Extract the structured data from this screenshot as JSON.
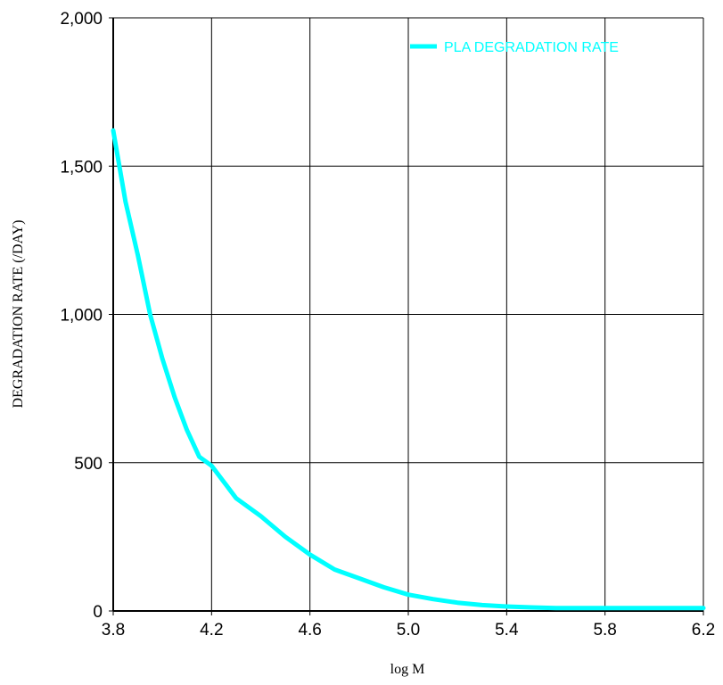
{
  "chart_data": {
    "type": "line",
    "title": "",
    "xlabel": "log M",
    "ylabel": "DEGRADATION RATE (/DAY)",
    "xlim": [
      3.8,
      6.2
    ],
    "ylim": [
      0,
      2000
    ],
    "x_ticks": [
      3.8,
      4.2,
      4.6,
      5.0,
      5.4,
      5.8,
      6.2
    ],
    "x_tick_labels": [
      "3.8",
      "4.2",
      "4.6",
      "5.0",
      "5.4",
      "5.8",
      "6.2"
    ],
    "y_ticks": [
      0,
      500,
      1000,
      1500,
      2000
    ],
    "y_tick_labels": [
      "0",
      "500",
      "1,000",
      "1,500",
      "2,000"
    ],
    "grid": true,
    "legend_position": "top-right",
    "series_color": "#00FFFF",
    "series": [
      {
        "name": "PLA DEGRADATION RATE",
        "x": [
          3.8,
          3.85,
          3.9,
          3.95,
          4.0,
          4.05,
          4.1,
          4.15,
          4.2,
          4.3,
          4.4,
          4.5,
          4.6,
          4.7,
          4.8,
          4.9,
          5.0,
          5.1,
          5.2,
          5.3,
          5.4,
          5.5,
          5.6,
          5.8,
          6.0,
          6.2
        ],
        "y": [
          1620,
          1380,
          1200,
          1000,
          850,
          720,
          610,
          520,
          490,
          380,
          320,
          250,
          190,
          140,
          110,
          80,
          55,
          40,
          28,
          20,
          15,
          12,
          10,
          10,
          10,
          10
        ]
      }
    ]
  }
}
